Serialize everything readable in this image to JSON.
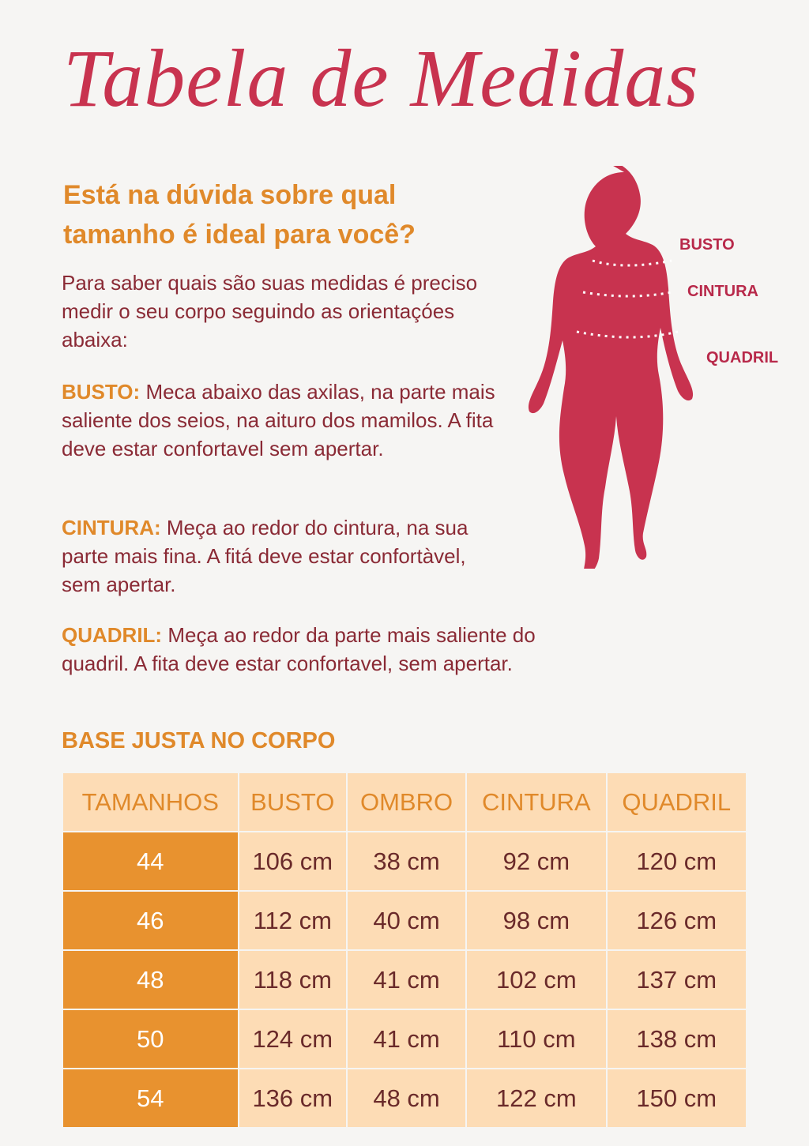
{
  "header": {
    "title": "Tabela de Medidas",
    "subtitle": [
      "Está na dúvida sobre qual",
      "tamanho é ideal para você?"
    ],
    "intro": "Para saber quais são suas medidas é preciso medir o seu corpo seguindo as orientaçóes abaixa:"
  },
  "instructions": [
    {
      "label": "BUSTO:",
      "text": "Meca abaixo das axilas, na parte mais saliente dos seios, na aituro dos mamilos. A fita deve estar confortavel sem apertar."
    },
    {
      "label": "CINTURA:",
      "text": "Meça ao redor do cintura, na sua parte mais fina. A fitá deve estar confortàvel, sem apertar."
    },
    {
      "label": "QUADRIL:",
      "text": "Meça ao redor da parte mais saliente do quadril. A fita deve estar confortavel, sem apertar."
    }
  ],
  "figure": {
    "labels": [
      "BUSTO",
      "CINTURA",
      "QUADRIL"
    ]
  },
  "table": {
    "title": "BASE JUSTA NO CORPO",
    "headers": [
      "TAMANHOS",
      "BUSTO",
      "OMBRO",
      "CINTURA",
      "QUADRIL"
    ],
    "rows": [
      [
        "44",
        "106 cm",
        "38 cm",
        "92 cm",
        "120 cm"
      ],
      [
        "46",
        "112 cm",
        "40 cm",
        "98 cm",
        "126 cm"
      ],
      [
        "48",
        "118 cm",
        "41 cm",
        "102 cm",
        "137 cm"
      ],
      [
        "50",
        "124 cm",
        "41 cm",
        "110 cm",
        "138 cm"
      ],
      [
        "54",
        "136 cm",
        "48 cm",
        "122 cm",
        "150 cm"
      ]
    ]
  }
}
